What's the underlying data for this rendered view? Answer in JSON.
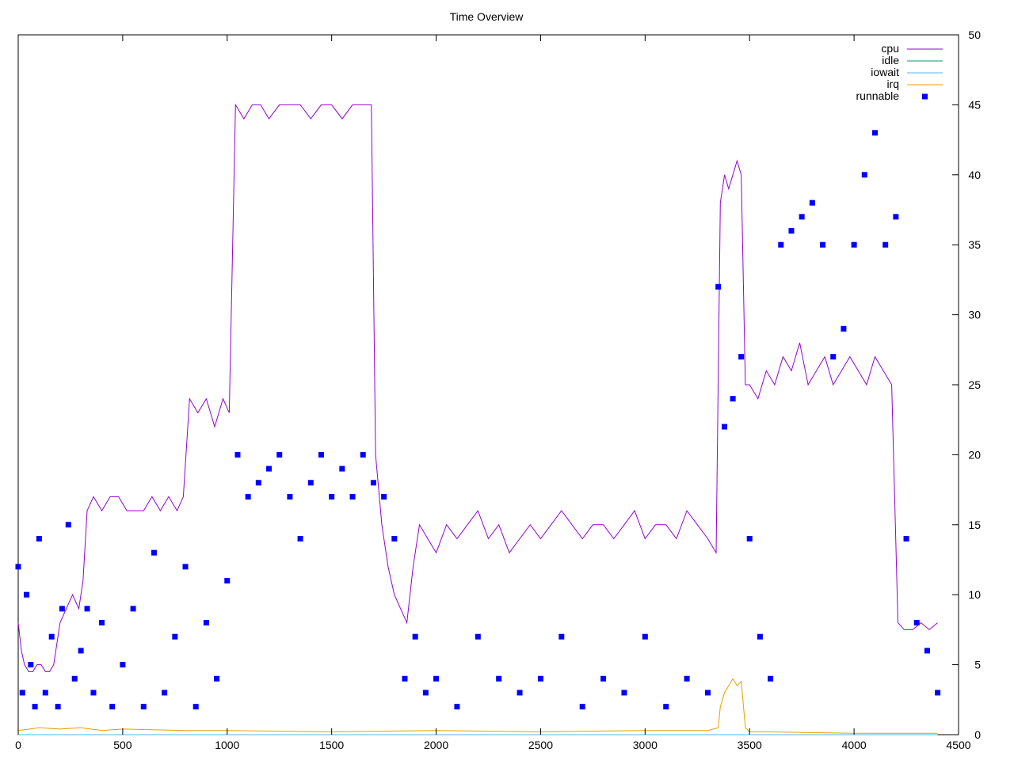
{
  "chart_data": {
    "type": "line",
    "title": "Time Overview",
    "xlabel": "",
    "ylabel": "",
    "xlim": [
      0,
      4500
    ],
    "ylim": [
      0,
      50
    ],
    "y_axis_side": "right",
    "grid": false,
    "legend_position": "top-right",
    "x_ticks": [
      "0",
      "500",
      "1000",
      "1500",
      "2000",
      "2500",
      "3000",
      "3500",
      "4000",
      "4500"
    ],
    "y_ticks": [
      "0",
      "5",
      "10",
      "15",
      "20",
      "25",
      "30",
      "35",
      "40",
      "45",
      "50"
    ],
    "series": [
      {
        "name": "cpu",
        "style": "line",
        "color": "#9400d3",
        "x": [
          0,
          15,
          30,
          50,
          70,
          90,
          110,
          130,
          150,
          170,
          200,
          230,
          260,
          290,
          310,
          330,
          360,
          400,
          440,
          480,
          520,
          560,
          600,
          640,
          680,
          720,
          760,
          790,
          820,
          860,
          900,
          940,
          980,
          1010,
          1040,
          1080,
          1120,
          1160,
          1200,
          1250,
          1300,
          1350,
          1400,
          1450,
          1500,
          1550,
          1600,
          1650,
          1690,
          1710,
          1740,
          1770,
          1800,
          1830,
          1860,
          1890,
          1920,
          1960,
          2000,
          2050,
          2100,
          2150,
          2200,
          2250,
          2300,
          2350,
          2400,
          2450,
          2500,
          2550,
          2600,
          2650,
          2700,
          2750,
          2800,
          2850,
          2900,
          2950,
          3000,
          3050,
          3100,
          3150,
          3200,
          3250,
          3300,
          3340,
          3360,
          3380,
          3400,
          3420,
          3440,
          3460,
          3480,
          3500,
          3540,
          3580,
          3620,
          3660,
          3700,
          3740,
          3780,
          3820,
          3860,
          3900,
          3940,
          3980,
          4020,
          4060,
          4100,
          4140,
          4180,
          4210,
          4240,
          4280,
          4320,
          4360,
          4400
        ],
        "values": [
          8,
          6,
          5,
          4.5,
          4.5,
          5,
          5,
          4.5,
          4.5,
          5,
          8,
          9,
          10,
          9,
          11,
          16,
          17,
          16,
          17,
          17,
          16,
          16,
          16,
          17,
          16,
          17,
          16,
          17,
          24,
          23,
          24,
          22,
          24,
          23,
          45,
          44,
          45,
          45,
          44,
          45,
          45,
          45,
          44,
          45,
          45,
          44,
          45,
          45,
          45,
          20,
          15,
          12,
          10,
          9,
          8,
          12,
          15,
          14,
          13,
          15,
          14,
          15,
          16,
          14,
          15,
          13,
          14,
          15,
          14,
          15,
          16,
          15,
          14,
          15,
          15,
          14,
          15,
          16,
          14,
          15,
          15,
          14,
          16,
          15,
          14,
          13,
          38,
          40,
          39,
          40,
          41,
          40,
          25,
          25,
          24,
          26,
          25,
          27,
          26,
          28,
          25,
          26,
          27,
          25,
          26,
          27,
          26,
          25,
          27,
          26,
          25,
          8,
          7.5,
          7.5,
          8,
          7.5,
          8
        ]
      },
      {
        "name": "idle",
        "style": "line",
        "color": "#009e73",
        "x": [
          0,
          4400
        ],
        "values": [
          0,
          0
        ]
      },
      {
        "name": "iowait",
        "style": "line",
        "color": "#56b4e9",
        "x": [
          0,
          4400
        ],
        "values": [
          0,
          0
        ]
      },
      {
        "name": "irq",
        "style": "line",
        "color": "#e69f00",
        "x": [
          0,
          100,
          200,
          300,
          400,
          500,
          800,
          1000,
          1500,
          2000,
          2500,
          3000,
          3300,
          3350,
          3360,
          3380,
          3400,
          3420,
          3440,
          3460,
          3480,
          3500,
          3600,
          4000,
          4400
        ],
        "values": [
          0.3,
          0.5,
          0.4,
          0.5,
          0.3,
          0.4,
          0.3,
          0.3,
          0.2,
          0.3,
          0.2,
          0.3,
          0.3,
          0.5,
          2,
          3,
          3.5,
          4,
          3.5,
          3.8,
          0.5,
          0.2,
          0.2,
          0.1,
          0.1
        ]
      },
      {
        "name": "runnable",
        "style": "points",
        "color": "#0000ff",
        "x": [
          0,
          20,
          40,
          60,
          80,
          100,
          130,
          160,
          190,
          210,
          240,
          270,
          300,
          330,
          360,
          400,
          450,
          500,
          550,
          600,
          650,
          700,
          750,
          800,
          850,
          900,
          950,
          1000,
          1050,
          1100,
          1150,
          1200,
          1250,
          1300,
          1350,
          1400,
          1450,
          1500,
          1550,
          1600,
          1650,
          1700,
          1750,
          1800,
          1850,
          1900,
          1950,
          2000,
          2100,
          2200,
          2300,
          2400,
          2500,
          2600,
          2700,
          2800,
          2900,
          3000,
          3100,
          3200,
          3300,
          3350,
          3380,
          3420,
          3460,
          3500,
          3550,
          3600,
          3650,
          3700,
          3750,
          3800,
          3850,
          3900,
          3950,
          4000,
          4050,
          4100,
          4150,
          4200,
          4250,
          4300,
          4350,
          4400
        ],
        "values": [
          12,
          3,
          10,
          5,
          2,
          14,
          3,
          7,
          2,
          9,
          15,
          4,
          6,
          9,
          3,
          8,
          2,
          5,
          9,
          2,
          13,
          3,
          7,
          12,
          2,
          8,
          4,
          11,
          20,
          17,
          18,
          19,
          20,
          17,
          14,
          18,
          20,
          17,
          19,
          17,
          20,
          18,
          17,
          14,
          4,
          7,
          3,
          4,
          2,
          7,
          4,
          3,
          4,
          7,
          2,
          4,
          3,
          7,
          2,
          4,
          3,
          32,
          22,
          24,
          27,
          14,
          7,
          4,
          35,
          36,
          37,
          38,
          35,
          27,
          29,
          35,
          40,
          43,
          35,
          37,
          14,
          8,
          6,
          3
        ]
      }
    ]
  }
}
